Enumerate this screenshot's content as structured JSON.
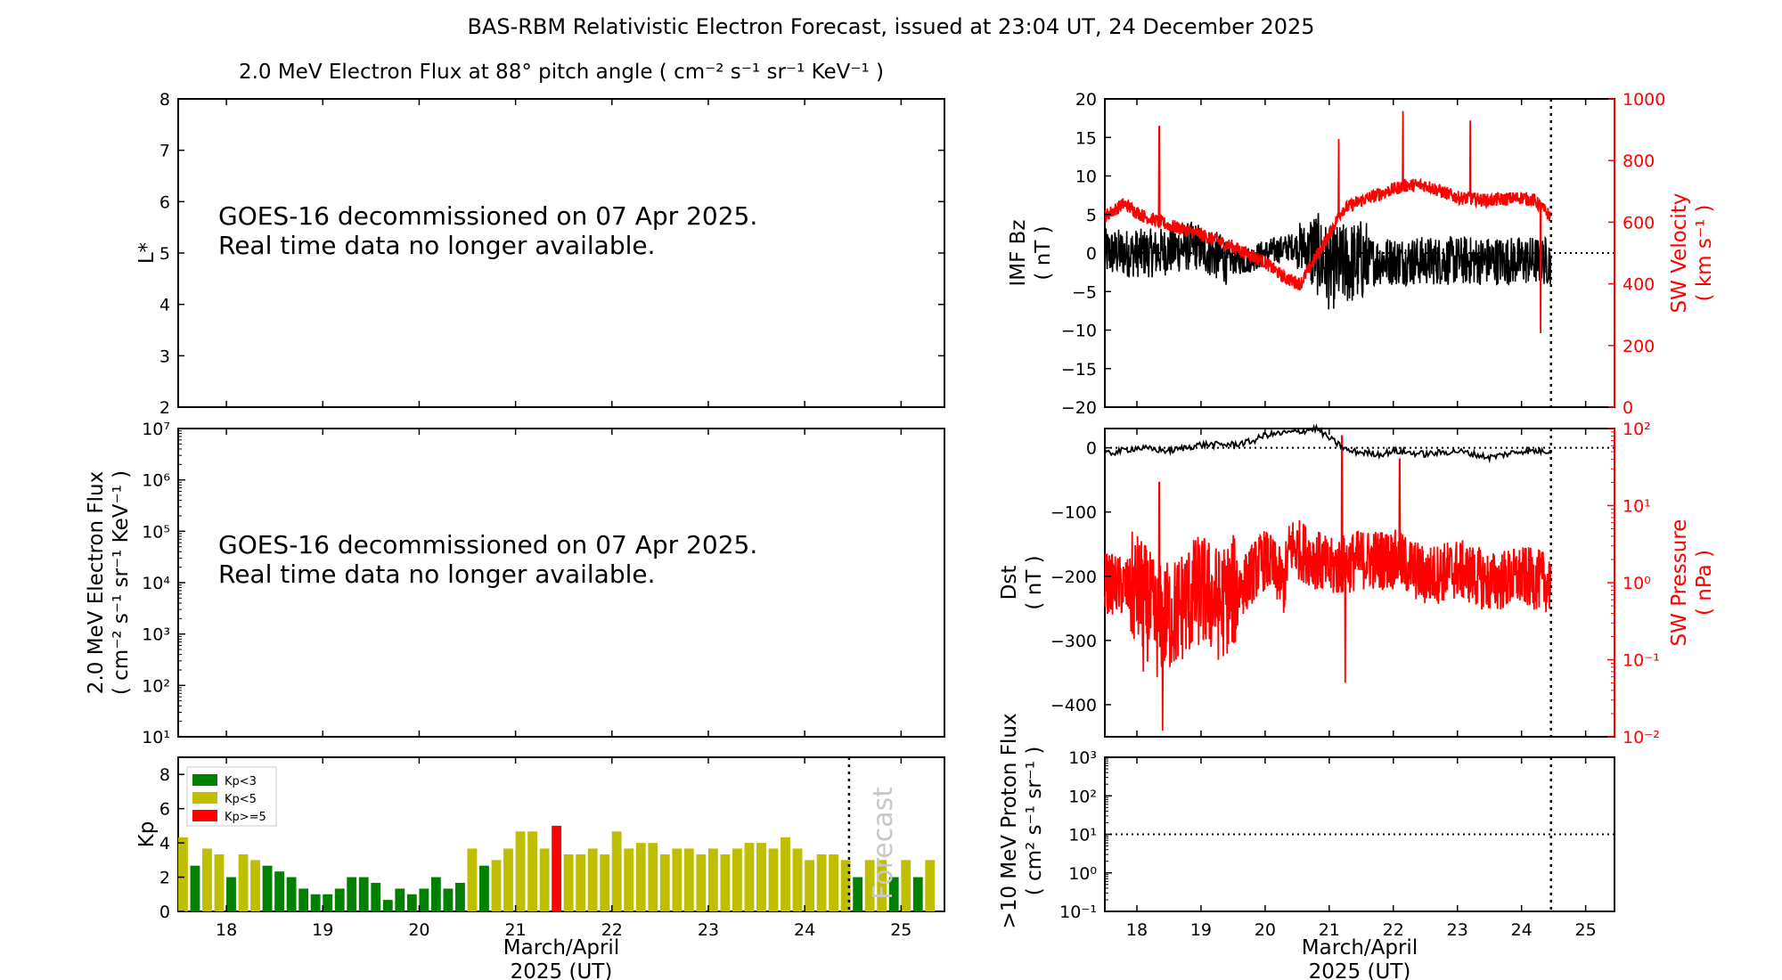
{
  "figure": {
    "title": "BAS-RBM Relativistic Electron Forecast, issued at 23:04 UT, 24 December 2025",
    "flux_title": "2.0 MeV Electron Flux at 88° pitch angle ( cm⁻² s⁻¹ sr⁻¹ KeV⁻¹ )",
    "message_line1": "GOES-16 decommissioned on 07 Apr 2025.",
    "message_line2": "Real time data no longer available.",
    "xlabel_line1": "March/April",
    "xlabel_line2": "2025 (UT)",
    "forecast_label": "Forecast",
    "colors": {
      "kp_low": "#008000",
      "kp_mid": "#bfbf00",
      "kp_high": "#ff0000",
      "sw": "#ff0000",
      "bz": "#000000"
    }
  },
  "chart_data": [
    {
      "id": "lstar",
      "type": "heatmap",
      "ylabel": "L*",
      "ylim": [
        2,
        8
      ],
      "yticks": [
        "2",
        "3",
        "4",
        "5",
        "6",
        "7",
        "8"
      ],
      "xlim": [
        17.5,
        25.45
      ],
      "xticks": [
        "18",
        "19",
        "20",
        "21",
        "22",
        "23",
        "24",
        "25"
      ]
    },
    {
      "id": "flux",
      "type": "line",
      "ylabel_line1": "2.0 MeV Electron Flux",
      "ylabel_line2": "( cm⁻² s⁻¹ sr⁻¹ KeV⁻¹ )",
      "yscale": "log",
      "ylim": [
        10,
        10000000
      ],
      "yticks": [
        "10¹",
        "10²",
        "10³",
        "10⁴",
        "10⁵",
        "10⁶",
        "10⁷"
      ]
    },
    {
      "id": "kp",
      "type": "bar",
      "ylabel": "Kp",
      "ylim": [
        0,
        9
      ],
      "yticks": [
        "0",
        "2",
        "4",
        "6",
        "8"
      ],
      "xticks": [
        "18",
        "19",
        "20",
        "21",
        "22",
        "23",
        "24",
        "25"
      ],
      "issue_time": 24.46,
      "legend": [
        "Kp<3",
        "Kp<5",
        "Kp>=5"
      ],
      "bar_width_days": 0.1,
      "values": [
        4.33,
        2.67,
        3.67,
        3.33,
        2.0,
        3.33,
        3.0,
        2.67,
        2.33,
        2.0,
        1.33,
        1.0,
        1.0,
        1.33,
        2.0,
        2.0,
        1.67,
        0.67,
        1.33,
        1.0,
        1.33,
        2.0,
        1.33,
        1.67,
        3.67,
        2.67,
        3.0,
        3.67,
        4.67,
        4.67,
        3.67,
        5.0,
        3.33,
        3.33,
        3.67,
        3.33,
        4.67,
        3.67,
        4.0,
        4.0,
        3.33,
        3.67,
        3.67,
        3.33,
        3.67,
        3.33,
        3.67,
        4.0,
        4.0,
        3.67,
        4.33,
        3.67,
        3.0,
        3.33,
        3.33,
        3.0,
        2.0,
        3.0,
        3.0,
        2.0,
        3.0,
        2.0,
        3.0
      ]
    },
    {
      "id": "bz",
      "type": "line",
      "ylabel_line1": "IMF Bz",
      "ylabel_line2": "( nT )",
      "ylim": [
        -20,
        20
      ],
      "yticks": [
        "−20",
        "−15",
        "−10",
        "−5",
        "0",
        "5",
        "10",
        "15",
        "20"
      ],
      "y2label_line1": "SW Velocity",
      "y2label_line2": "( km s⁻¹ )",
      "y2lim": [
        0,
        1000
      ],
      "y2ticks": [
        "0",
        "200",
        "400",
        "600",
        "800",
        "1000"
      ],
      "issue_time": 24.46,
      "bz_knots": [
        [
          17.5,
          0
        ],
        [
          18.3,
          0
        ],
        [
          18.9,
          1
        ],
        [
          19.4,
          -1
        ],
        [
          19.7,
          -1
        ],
        [
          20.0,
          0
        ],
        [
          20.5,
          1
        ],
        [
          20.8,
          0
        ],
        [
          21.0,
          -2
        ],
        [
          21.5,
          -1
        ],
        [
          22.0,
          -1
        ],
        [
          23.0,
          -1
        ],
        [
          24.45,
          -1
        ]
      ],
      "vsw_knots": [
        [
          17.5,
          620
        ],
        [
          17.8,
          660
        ],
        [
          18.1,
          620
        ],
        [
          18.5,
          590
        ],
        [
          19.0,
          560
        ],
        [
          19.5,
          520
        ],
        [
          20.0,
          470
        ],
        [
          20.3,
          420
        ],
        [
          20.55,
          400
        ],
        [
          20.8,
          490
        ],
        [
          21.0,
          560
        ],
        [
          21.2,
          640
        ],
        [
          21.5,
          670
        ],
        [
          21.9,
          700
        ],
        [
          22.2,
          720
        ],
        [
          22.5,
          720
        ],
        [
          23.0,
          680
        ],
        [
          23.5,
          670
        ],
        [
          24.0,
          680
        ],
        [
          24.2,
          670
        ],
        [
          24.45,
          620
        ]
      ],
      "vsw_spikes": [
        [
          18.35,
          910
        ],
        [
          21.15,
          870
        ],
        [
          22.15,
          960
        ],
        [
          23.2,
          930
        ],
        [
          24.3,
          240
        ]
      ]
    },
    {
      "id": "dst",
      "type": "line",
      "ylabel_line1": "Dst",
      "ylabel_line2": "( nT )",
      "ylim": [
        -450,
        30
      ],
      "yticks": [
        "−400",
        "−300",
        "−200",
        "−100",
        "0"
      ],
      "y2label_line1": "SW Pressure",
      "y2label_line2": "( nPa )",
      "y2scale": "log",
      "y2lim": [
        0.01,
        100
      ],
      "y2ticks": [
        "10⁻²",
        "10⁻¹",
        "10⁰",
        "10¹",
        "10²"
      ],
      "issue_time": 24.46,
      "dst_knots": [
        [
          17.5,
          -10
        ],
        [
          18.0,
          0
        ],
        [
          18.5,
          -5
        ],
        [
          19.0,
          5
        ],
        [
          19.5,
          5
        ],
        [
          19.8,
          10
        ],
        [
          20.0,
          20
        ],
        [
          20.5,
          25
        ],
        [
          20.8,
          30
        ],
        [
          21.0,
          15
        ],
        [
          21.3,
          -5
        ],
        [
          21.8,
          -10
        ],
        [
          22.0,
          -5
        ],
        [
          22.5,
          -10
        ],
        [
          23.0,
          -5
        ],
        [
          23.5,
          -15
        ],
        [
          24.0,
          -5
        ],
        [
          24.45,
          -5
        ]
      ],
      "psw_knots": [
        [
          17.5,
          1.0
        ],
        [
          18.0,
          0.8
        ],
        [
          18.3,
          0.3
        ],
        [
          18.6,
          0.4
        ],
        [
          19.0,
          0.8
        ],
        [
          19.3,
          0.5
        ],
        [
          19.7,
          1.0
        ],
        [
          20.0,
          2.0
        ],
        [
          20.3,
          0.9
        ],
        [
          20.4,
          3.0
        ],
        [
          20.8,
          2.0
        ],
        [
          21.0,
          1.5
        ],
        [
          21.5,
          2.0
        ],
        [
          22.0,
          2.0
        ],
        [
          22.5,
          1.2
        ],
        [
          23.0,
          1.5
        ],
        [
          23.5,
          1.0
        ],
        [
          24.0,
          1.2
        ],
        [
          24.45,
          1.0
        ]
      ],
      "psw_spikes": [
        [
          18.1,
          0.07
        ],
        [
          18.35,
          20.0
        ],
        [
          18.4,
          0.012
        ],
        [
          21.2,
          80.0
        ],
        [
          22.1,
          40.0
        ],
        [
          21.25,
          0.05
        ]
      ]
    },
    {
      "id": "proton",
      "type": "line",
      "ylabel_line1": ">10 MeV Proton Flux",
      "ylabel_line2": "( cm² s⁻¹ sr⁻¹ )",
      "yscale": "log",
      "ylim": [
        0.1,
        1000
      ],
      "yticks": [
        "10⁻¹",
        "10⁰",
        "10¹",
        "10²",
        "10³"
      ],
      "xticks": [
        "18",
        "19",
        "20",
        "21",
        "22",
        "23",
        "24",
        "25"
      ],
      "threshold": 10,
      "issue_time": 24.46
    }
  ]
}
